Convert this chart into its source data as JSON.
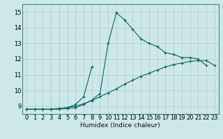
{
  "xlabel": "Humidex (Indice chaleur)",
  "bg_color": "#cce8e8",
  "grid_color": "#b8d4d4",
  "line_color": "#1a6b6b",
  "xlim": [
    -0.5,
    23.5
  ],
  "ylim": [
    8.5,
    15.5
  ],
  "xticks": [
    0,
    1,
    2,
    3,
    4,
    5,
    6,
    7,
    8,
    9,
    10,
    11,
    12,
    13,
    14,
    15,
    16,
    17,
    18,
    19,
    20,
    21,
    22,
    23
  ],
  "yticks": [
    9,
    10,
    11,
    12,
    13,
    14,
    15
  ],
  "line1_x": [
    0,
    1,
    2,
    3,
    4,
    5,
    6,
    7,
    8,
    9,
    10,
    11,
    12,
    13,
    14,
    15,
    16,
    17,
    18,
    19,
    20,
    21,
    22
  ],
  "line1_y": [
    8.8,
    8.8,
    8.8,
    8.8,
    8.8,
    8.85,
    8.9,
    9.1,
    9.4,
    9.8,
    13.0,
    14.95,
    14.5,
    13.9,
    13.3,
    13.0,
    12.8,
    12.4,
    12.3,
    12.1,
    12.1,
    12.0,
    11.6
  ],
  "line2_x": [
    0,
    1,
    2,
    3,
    4,
    5,
    6,
    7,
    8
  ],
  "line2_y": [
    8.8,
    8.8,
    8.8,
    8.8,
    8.85,
    8.9,
    9.1,
    9.6,
    11.5
  ],
  "line3_x": [
    0,
    1,
    2,
    3,
    4,
    5,
    6,
    7,
    8,
    9,
    10,
    11,
    12,
    13,
    14,
    15,
    16,
    17,
    18,
    19,
    20,
    21,
    22,
    23
  ],
  "line3_y": [
    8.8,
    8.8,
    8.8,
    8.8,
    8.85,
    8.9,
    9.0,
    9.15,
    9.35,
    9.6,
    9.85,
    10.1,
    10.4,
    10.65,
    10.9,
    11.1,
    11.3,
    11.5,
    11.65,
    11.75,
    11.85,
    11.9,
    11.9,
    11.6
  ]
}
